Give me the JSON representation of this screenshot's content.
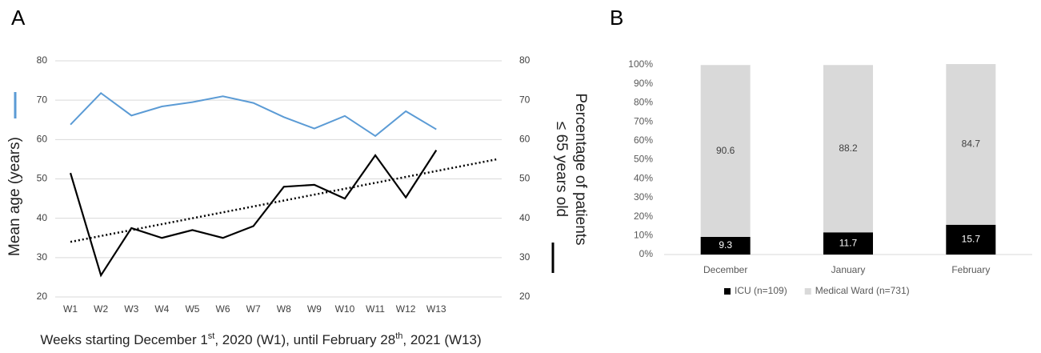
{
  "chart_data": [
    {
      "type": "line",
      "panel_label": "A",
      "categories": [
        "W1",
        "W2",
        "W3",
        "W4",
        "W5",
        "W6",
        "W7",
        "W8",
        "W9",
        "W10",
        "W11",
        "W12",
        "W13"
      ],
      "series": [
        {
          "color": "#5b9bd5",
          "values": [
            63.8,
            71.8,
            66.1,
            68.4,
            69.5,
            71.0,
            69.3,
            65.7,
            62.8,
            66.0,
            60.9,
            67.2,
            62.6
          ]
        },
        {
          "color": "#000000",
          "axis": "y2",
          "values": [
            51.5,
            25.5,
            37.5,
            35.0,
            37.0,
            35.0,
            38.0,
            48.0,
            48.5,
            45.0,
            56.0,
            45.3,
            57.3
          ]
        }
      ],
      "trend": {
        "axis": "y2",
        "color": "#000000",
        "style": "dotted",
        "values": [
          34,
          55
        ],
        "forward": 2
      },
      "ylabel": "Mean age (years)",
      "y2label": [
        "Percentage of patients",
        "≤ 65 years old"
      ],
      "xlabel_parts": [
        "Weeks starting December 1",
        "st",
        ", 2020 (W1), until February 28",
        "th",
        ", 2021 (W13)"
      ],
      "ylim": [
        20,
        80
      ],
      "yticks": [
        20,
        30,
        40,
        50,
        60,
        70,
        80
      ],
      "y2lim": [
        20,
        80
      ],
      "y2ticks": [
        20,
        30,
        40,
        50,
        60,
        70,
        80
      ],
      "grid": true
    },
    {
      "type": "bar",
      "stacked": true,
      "panel_label": "B",
      "categories": [
        "December",
        "January",
        "February"
      ],
      "series": [
        {
          "name": "ICU (n=109)",
          "color": "#000000",
          "label_color": "#ffffff",
          "values": [
            9.3,
            11.7,
            15.7
          ]
        },
        {
          "name": "Medical Ward (n=731)",
          "color": "#d9d9d9",
          "label_color": "#404040",
          "values": [
            90.6,
            88.2,
            84.7
          ]
        }
      ],
      "ylim": [
        0,
        100
      ],
      "yticks": [
        {
          "value": 0,
          "label": "0%"
        },
        {
          "value": 10,
          "label": "10%"
        },
        {
          "value": 20,
          "label": "20%"
        },
        {
          "value": 30,
          "label": "30%"
        },
        {
          "value": 40,
          "label": "40%"
        },
        {
          "value": 50,
          "label": "50%"
        },
        {
          "value": 60,
          "label": "60%"
        },
        {
          "value": 70,
          "label": "70%"
        },
        {
          "value": 80,
          "label": "80%"
        },
        {
          "value": 90,
          "label": "90%"
        },
        {
          "value": 100,
          "label": "100%"
        }
      ],
      "legend": "bottom",
      "grid": false
    }
  ]
}
